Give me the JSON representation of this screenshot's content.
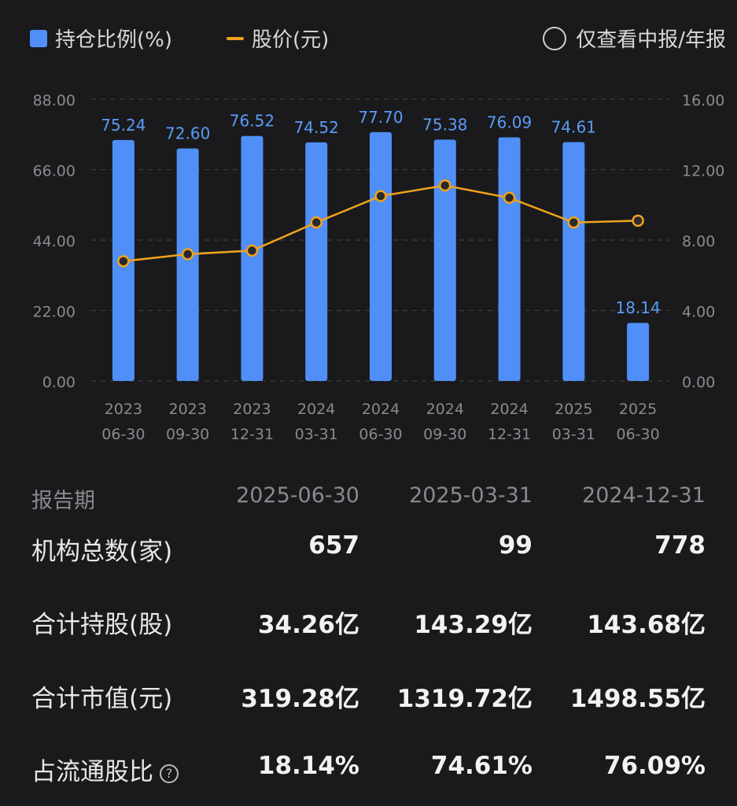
{
  "legend": {
    "bar_label": "持仓比例(%)",
    "line_label": "股价(元)",
    "toggle_label": "仅查看中报/年报"
  },
  "colors": {
    "bar": "#4f8ff7",
    "line": "#f0a21b",
    "bar_label": "#5b9bf8",
    "axis_text": "#8a8a8e",
    "background": "#1a1a1c"
  },
  "chart_data": {
    "type": "bar+line",
    "categories": [
      [
        "2023",
        "06-30"
      ],
      [
        "2023",
        "09-30"
      ],
      [
        "2023",
        "12-31"
      ],
      [
        "2024",
        "03-31"
      ],
      [
        "2024",
        "06-30"
      ],
      [
        "2024",
        "09-30"
      ],
      [
        "2024",
        "12-31"
      ],
      [
        "2025",
        "03-31"
      ],
      [
        "2025",
        "06-30"
      ]
    ],
    "series": [
      {
        "name": "持仓比例(%)",
        "type": "bar",
        "axis": "left",
        "values": [
          75.24,
          72.6,
          76.52,
          74.52,
          77.7,
          75.38,
          76.09,
          74.61,
          18.14
        ],
        "labels": [
          "75.24",
          "72.60",
          "76.52",
          "74.52",
          "77.70",
          "75.38",
          "76.09",
          "74.61",
          "18.14"
        ]
      },
      {
        "name": "股价(元)",
        "type": "line",
        "axis": "right",
        "values": [
          6.8,
          7.2,
          7.4,
          9.0,
          10.5,
          11.1,
          10.4,
          9.0,
          9.1
        ]
      }
    ],
    "left_axis": {
      "ylim": [
        0,
        88
      ],
      "ticks": [
        "0.00",
        "22.00",
        "44.00",
        "66.00",
        "88.00"
      ]
    },
    "right_axis": {
      "ylim": [
        0,
        16
      ],
      "ticks": [
        "0.00",
        "4.00",
        "8.00",
        "12.00",
        "16.00"
      ]
    },
    "grid": true,
    "legend_position": "top-left"
  },
  "table": {
    "header": {
      "label": "报告期",
      "cols": [
        "2025-06-30",
        "2025-03-31",
        "2024-12-31"
      ]
    },
    "rows": [
      {
        "label": "机构总数(家)",
        "values": [
          "657",
          "99",
          "778"
        ]
      },
      {
        "label": "合计持股(股)",
        "values": [
          "34.26亿",
          "143.29亿",
          "143.68亿"
        ]
      },
      {
        "label": "合计市值(元)",
        "values": [
          "319.28亿",
          "1319.72亿",
          "1498.55亿"
        ]
      },
      {
        "label": "占流通股比",
        "values": [
          "18.14%",
          "74.61%",
          "76.09%"
        ],
        "help_icon": "question-circle-icon"
      }
    ]
  }
}
